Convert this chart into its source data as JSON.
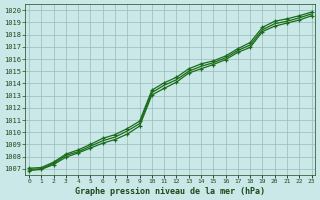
{
  "title": "Graphe pression niveau de la mer (hPa)",
  "background_color": "#cbe8e8",
  "grid_color": "#99bbbb",
  "line_color": "#1a6b1a",
  "marker_color": "#1a6b1a",
  "x_labels": [
    "0",
    "1",
    "2",
    "3",
    "4",
    "5",
    "6",
    "7",
    "8",
    "9",
    "10",
    "11",
    "12",
    "13",
    "14",
    "15",
    "16",
    "17",
    "18",
    "19",
    "20",
    "21",
    "22",
    "23"
  ],
  "ylim": [
    1006.5,
    1020.5
  ],
  "xlim": [
    -0.3,
    23.3
  ],
  "yticks": [
    1007,
    1008,
    1009,
    1010,
    1011,
    1012,
    1013,
    1014,
    1015,
    1016,
    1017,
    1018,
    1019,
    1020
  ],
  "line_upper": [
    1007.05,
    1007.1,
    1007.55,
    1008.2,
    1008.55,
    1009.0,
    1009.5,
    1009.8,
    1010.3,
    1010.9,
    1013.45,
    1014.05,
    1014.5,
    1015.2,
    1015.6,
    1015.85,
    1016.25,
    1016.85,
    1017.35,
    1018.6,
    1019.1,
    1019.3,
    1019.55,
    1019.85
  ],
  "line_lower": [
    1006.85,
    1006.95,
    1007.35,
    1007.95,
    1008.3,
    1008.7,
    1009.1,
    1009.4,
    1009.85,
    1010.5,
    1013.05,
    1013.6,
    1014.1,
    1014.85,
    1015.2,
    1015.55,
    1015.95,
    1016.55,
    1016.95,
    1018.25,
    1018.7,
    1018.95,
    1019.2,
    1019.55
  ],
  "line_mid": [
    1006.95,
    1007.0,
    1007.45,
    1008.1,
    1008.4,
    1008.85,
    1009.3,
    1009.6,
    1010.1,
    1010.7,
    1013.25,
    1013.85,
    1014.3,
    1015.0,
    1015.4,
    1015.7,
    1016.1,
    1016.7,
    1017.15,
    1018.4,
    1018.9,
    1019.1,
    1019.38,
    1019.7
  ]
}
